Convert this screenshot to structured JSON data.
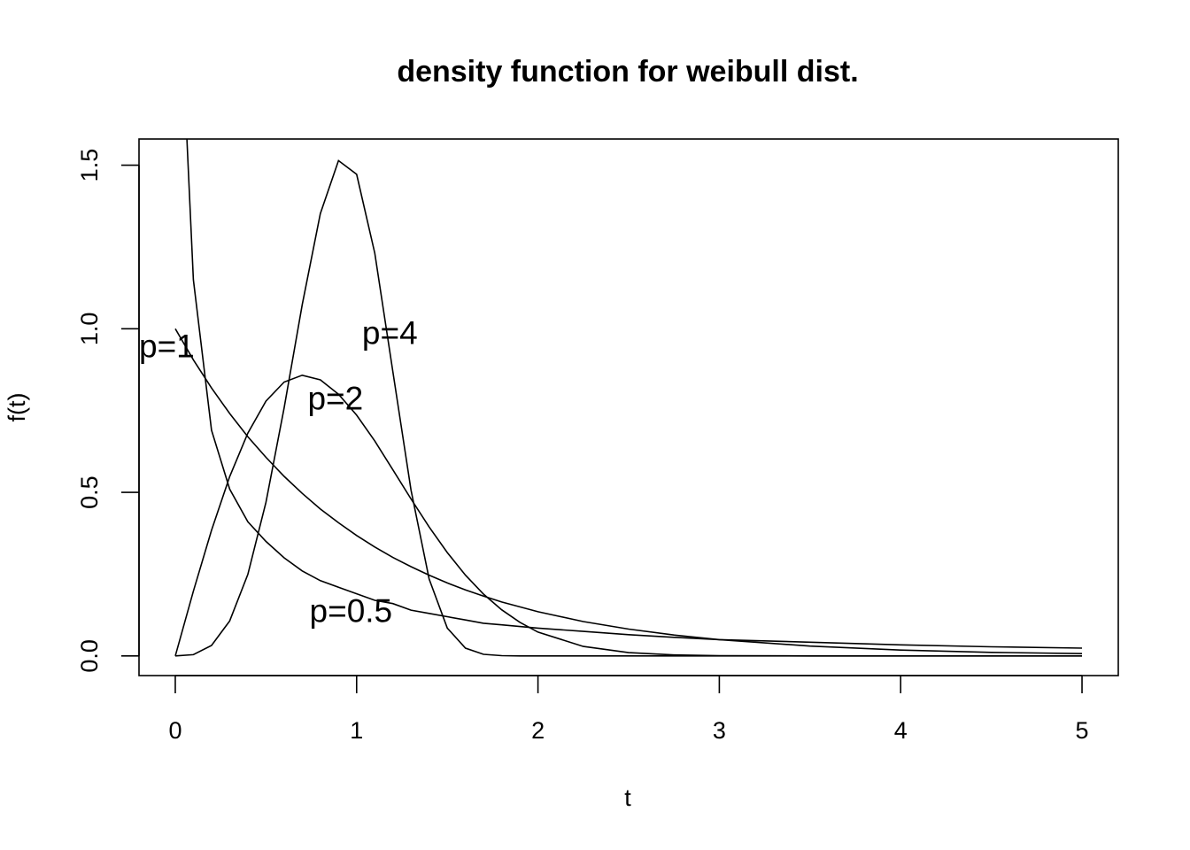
{
  "chart_data": {
    "type": "line",
    "title": "density function for weibull dist.",
    "xlabel": "t",
    "ylabel": "f(t)",
    "xlim": [
      0,
      5
    ],
    "ylim": [
      0,
      1.5
    ],
    "x_ticks": [
      0,
      1,
      2,
      3,
      4,
      5
    ],
    "y_ticks": [
      0.0,
      0.5,
      1.0,
      1.5
    ],
    "x_tick_labels": [
      "0",
      "1",
      "2",
      "3",
      "4",
      "5"
    ],
    "y_tick_labels": [
      "0.0",
      "0.5",
      "1.0",
      "1.5"
    ],
    "grid": false,
    "legend": "none",
    "line_color": "#000000",
    "x": [
      0,
      0.1,
      0.2,
      0.3,
      0.4,
      0.5,
      0.6,
      0.7,
      0.8,
      0.9,
      1.0,
      1.1,
      1.2,
      1.3,
      1.4,
      1.5,
      1.6,
      1.7,
      1.8,
      1.9,
      2.0,
      2.25,
      2.5,
      2.75,
      3.0,
      3.5,
      4.0,
      4.5,
      5.0
    ],
    "series": [
      {
        "shape": 0.5,
        "values": [
          null,
          1.15,
          0.69,
          0.51,
          0.41,
          0.35,
          0.3,
          0.26,
          0.23,
          0.21,
          0.19,
          0.17,
          0.16,
          0.14,
          0.13,
          0.12,
          0.11,
          0.1,
          0.095,
          0.09,
          0.085,
          0.075,
          0.065,
          0.057,
          0.05,
          0.042,
          0.034,
          0.028,
          0.024
        ]
      },
      {
        "shape": 1,
        "values": [
          1.0,
          0.905,
          0.819,
          0.741,
          0.67,
          0.607,
          0.549,
          0.497,
          0.449,
          0.407,
          0.368,
          0.333,
          0.301,
          0.273,
          0.247,
          0.223,
          0.202,
          0.183,
          0.165,
          0.15,
          0.135,
          0.105,
          0.082,
          0.064,
          0.05,
          0.03,
          0.018,
          0.011,
          0.007
        ]
      },
      {
        "shape": 2,
        "values": [
          0,
          0.198,
          0.384,
          0.548,
          0.681,
          0.779,
          0.837,
          0.858,
          0.844,
          0.8,
          0.736,
          0.657,
          0.569,
          0.48,
          0.394,
          0.316,
          0.247,
          0.189,
          0.141,
          0.103,
          0.073,
          0.029,
          0.01,
          0.003,
          0.001,
          0,
          0,
          0,
          0
        ]
      },
      {
        "shape": 4,
        "values": [
          0,
          0.004,
          0.032,
          0.107,
          0.249,
          0.47,
          0.758,
          1.073,
          1.352,
          1.514,
          1.472,
          1.231,
          0.869,
          0.507,
          0.235,
          0.085,
          0.024,
          0.005,
          0.001,
          0,
          0,
          0,
          0,
          0,
          0,
          0,
          0,
          0,
          0
        ]
      }
    ],
    "annotations": [
      {
        "text": "p=1",
        "x": -0.2,
        "y": 0.94
      },
      {
        "text": "p=4",
        "x": 1.03,
        "y": 0.98
      },
      {
        "text": "p=2",
        "x": 0.73,
        "y": 0.78
      },
      {
        "text": "p=0.5",
        "x": 0.74,
        "y": 0.13
      }
    ]
  }
}
